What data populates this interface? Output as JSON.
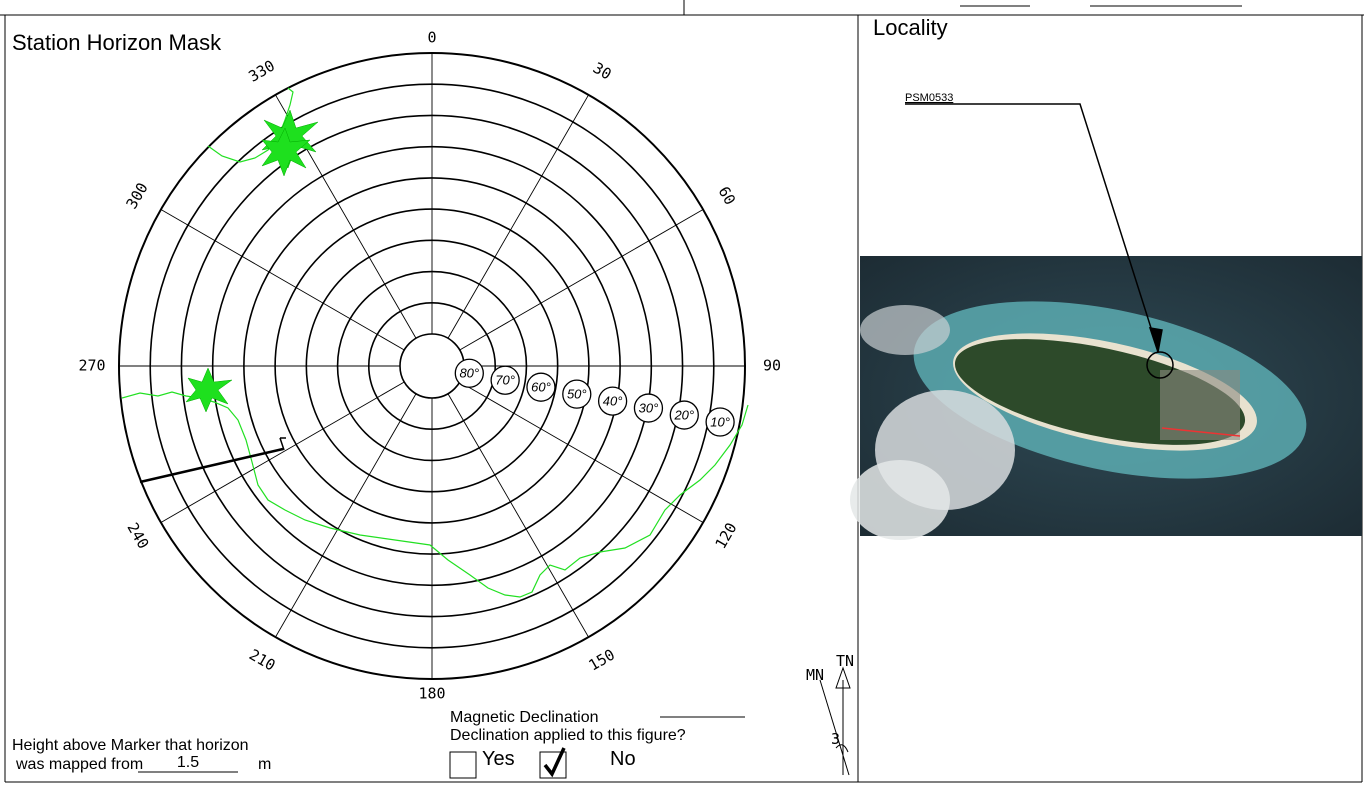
{
  "mask": {
    "title": "Station Horizon Mask",
    "azimuth_labels": [
      0,
      30,
      60,
      90,
      120,
      150,
      180,
      210,
      240,
      270,
      300,
      330
    ],
    "elevation_labels": [
      "80°",
      "70°",
      "60°",
      "50°",
      "40°",
      "30°",
      "20°",
      "10°"
    ]
  },
  "height": {
    "line1": "Height above Marker that horizon",
    "line2": "was mapped from",
    "value": "1.5",
    "unit": "m"
  },
  "declination": {
    "label": "Magnetic Declination",
    "question": "Declination applied to this figure?",
    "yes": "Yes",
    "no": "No"
  },
  "north_arrow": {
    "tn": "TN",
    "mn": "MN",
    "angle": "3"
  },
  "locality": {
    "title": "Locality",
    "station": "PSM0533"
  }
}
